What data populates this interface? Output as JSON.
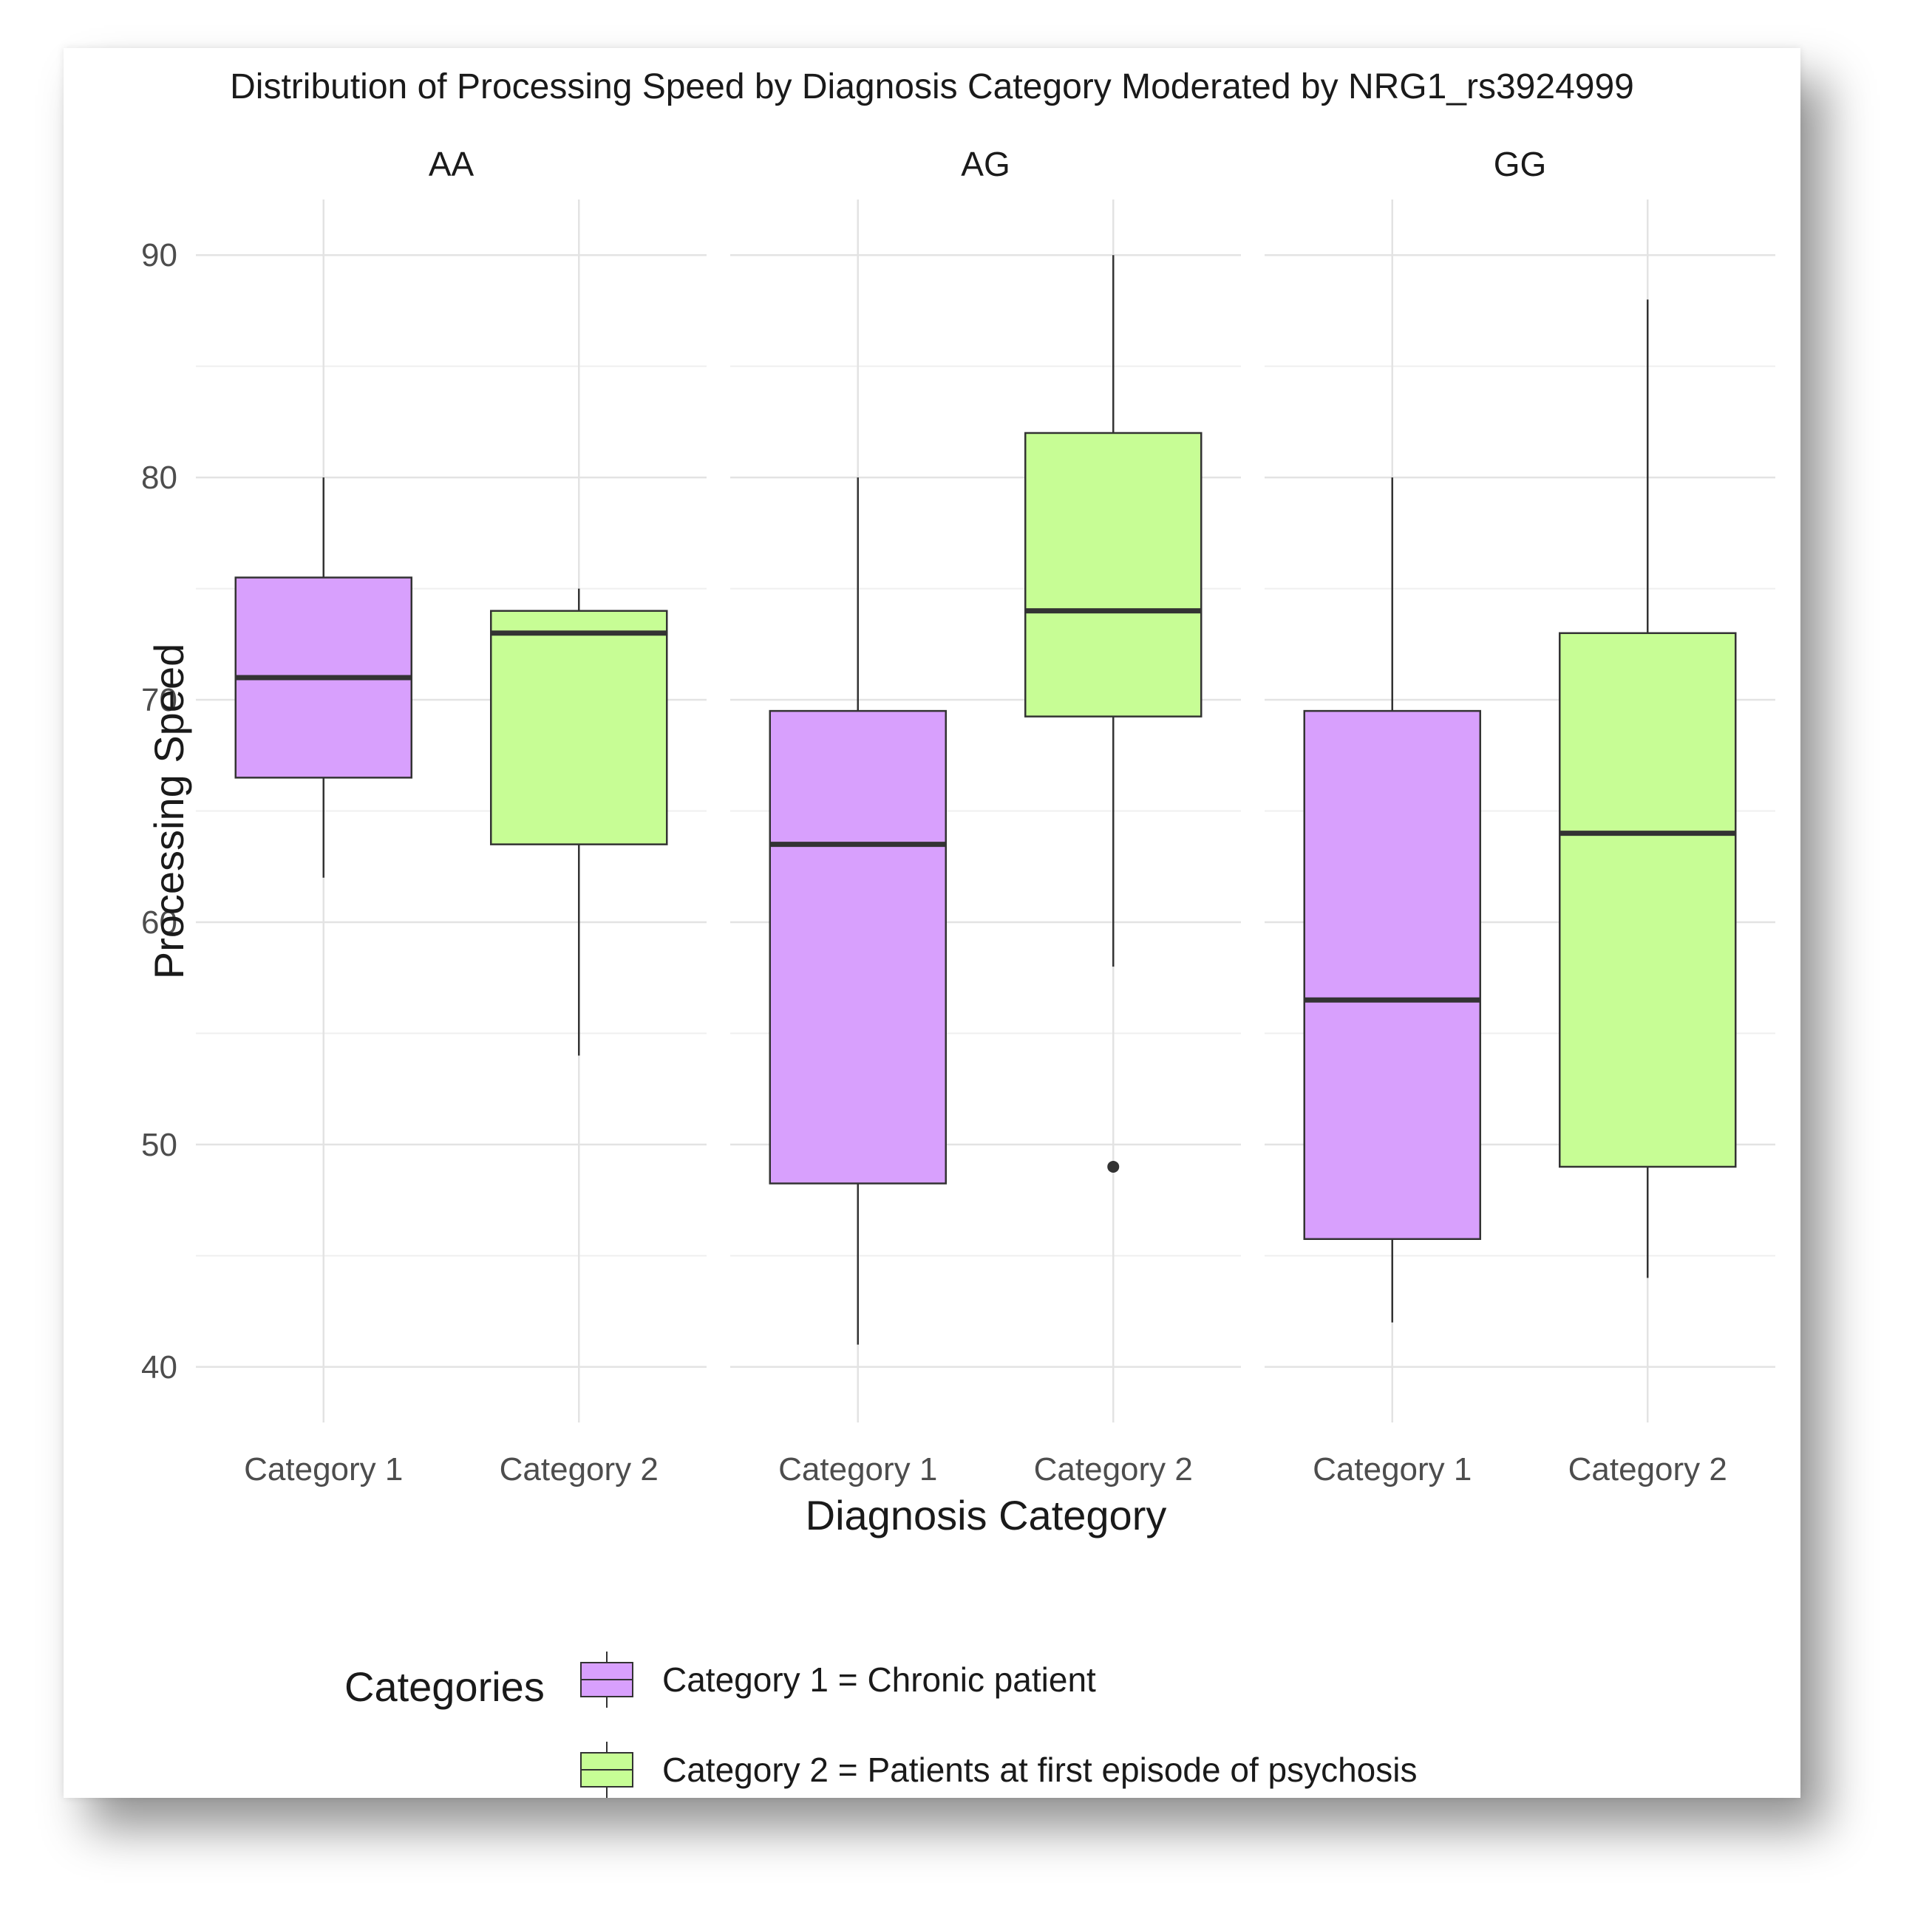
{
  "chart_data": {
    "type": "boxplot",
    "title": "Distribution of Processing Speed by Diagnosis Category Moderated by NRG1_rs3924999",
    "xlabel": "Diagnosis Category",
    "ylabel": "Processing Speed",
    "ylim": [
      37.5,
      92.5
    ],
    "yticks": [
      40,
      50,
      60,
      70,
      80,
      90
    ],
    "grid": true,
    "legend_position": "bottom",
    "facets": [
      {
        "label": "AA",
        "boxes": [
          {
            "category": "Category 1",
            "group": "Category 1",
            "whisker_low": 62,
            "q1": 66.5,
            "median": 71,
            "q3": 75.5,
            "whisker_high": 80,
            "outliers": []
          },
          {
            "category": "Category 2",
            "group": "Category 2",
            "whisker_low": 54,
            "q1": 63.5,
            "median": 73,
            "q3": 74,
            "whisker_high": 75,
            "outliers": []
          }
        ]
      },
      {
        "label": "AG",
        "boxes": [
          {
            "category": "Category 1",
            "group": "Category 1",
            "whisker_low": 41,
            "q1": 48.25,
            "median": 63.5,
            "q3": 69.5,
            "whisker_high": 80,
            "outliers": []
          },
          {
            "category": "Category 2",
            "group": "Category 2",
            "whisker_low": 58,
            "q1": 69.25,
            "median": 74,
            "q3": 82,
            "whisker_high": 90,
            "outliers": [
              49
            ]
          }
        ]
      },
      {
        "label": "GG",
        "boxes": [
          {
            "category": "Category 1",
            "group": "Category 1",
            "whisker_low": 42,
            "q1": 45.75,
            "median": 56.5,
            "q3": 69.5,
            "whisker_high": 80,
            "outliers": []
          },
          {
            "category": "Category 2",
            "group": "Category 2",
            "whisker_low": 44,
            "q1": 49,
            "median": 64,
            "q3": 73,
            "whisker_high": 88,
            "outliers": []
          }
        ]
      }
    ],
    "legend": {
      "title": "Categories",
      "entries": [
        {
          "group": "Category 1",
          "label": "Category 1 = Chronic patient",
          "color": "#d8a0fd"
        },
        {
          "group": "Category 2",
          "label": "Category 2 = Patients at first episode of psychosis",
          "color": "#c7fd95"
        }
      ]
    },
    "colors": {
      "Category 1": "#d8a0fd",
      "Category 2": "#c7fd95",
      "box_outline": "#333333",
      "median_line": "#333333",
      "grid_major": "#e3e3e3",
      "grid_minor": "#efefef",
      "tick_label": "#4d4d4d",
      "text": "#1a1a1a"
    }
  }
}
